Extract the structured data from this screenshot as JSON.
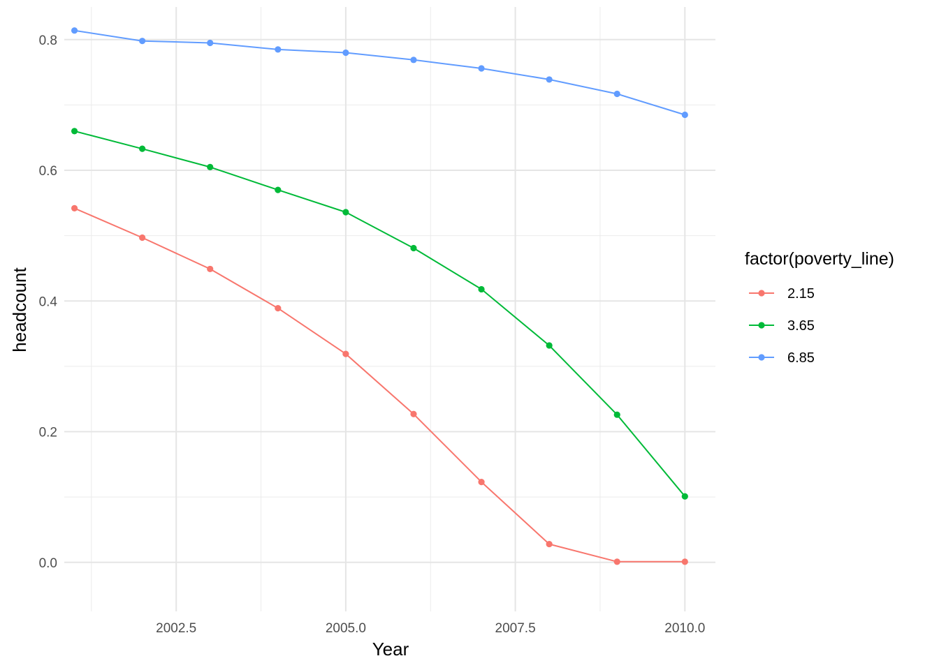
{
  "chart_data": {
    "type": "line",
    "title": "",
    "xlabel": "Year",
    "ylabel": "headcount",
    "x": [
      2001,
      2002,
      2003,
      2004,
      2005,
      2006,
      2007,
      2008,
      2009,
      2010
    ],
    "xlim": [
      2000.85,
      2010.45
    ],
    "ylim": [
      -0.075,
      0.85
    ],
    "x_ticks": [
      2002.5,
      2005.0,
      2007.5,
      2010.0
    ],
    "x_tick_labels": [
      "2002.5",
      "2005.0",
      "2007.5",
      "2010.0"
    ],
    "x_minor_ticks": [
      2001.25,
      2003.75,
      2006.25,
      2008.75
    ],
    "y_ticks": [
      0.0,
      0.2,
      0.4,
      0.6,
      0.8
    ],
    "y_tick_labels": [
      "0.0",
      "0.2",
      "0.4",
      "0.6",
      "0.8"
    ],
    "y_minor_ticks": [
      0.1,
      0.3,
      0.5,
      0.7
    ],
    "grid": true,
    "legend_title": "factor(poverty_line)",
    "legend_position": "right",
    "series": [
      {
        "name": "2.15",
        "color": "#F8766D",
        "values": [
          0.542,
          0.497,
          0.449,
          0.389,
          0.319,
          0.227,
          0.123,
          0.028,
          0.001,
          0.001
        ]
      },
      {
        "name": "3.65",
        "color": "#00BA38",
        "values": [
          0.66,
          0.633,
          0.605,
          0.57,
          0.536,
          0.481,
          0.418,
          0.332,
          0.226,
          0.101
        ]
      },
      {
        "name": "6.85",
        "color": "#619CFF",
        "values": [
          0.814,
          0.798,
          0.795,
          0.785,
          0.78,
          0.769,
          0.756,
          0.739,
          0.717,
          0.685
        ]
      }
    ]
  }
}
